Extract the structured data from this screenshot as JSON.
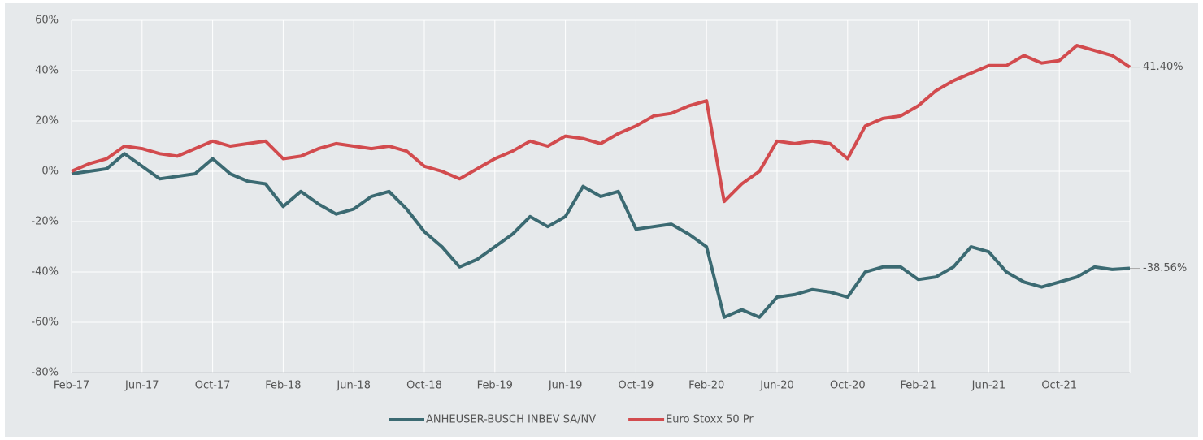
{
  "chart_data": {
    "type": "line",
    "x": [
      "Feb-17",
      "Mar-17",
      "Apr-17",
      "May-17",
      "Jun-17",
      "Jul-17",
      "Aug-17",
      "Sep-17",
      "Oct-17",
      "Nov-17",
      "Dec-17",
      "Jan-18",
      "Feb-18",
      "Mar-18",
      "Apr-18",
      "May-18",
      "Jun-18",
      "Jul-18",
      "Aug-18",
      "Sep-18",
      "Oct-18",
      "Nov-18",
      "Dec-18",
      "Jan-19",
      "Feb-19",
      "Mar-19",
      "Apr-19",
      "May-19",
      "Jun-19",
      "Jul-19",
      "Aug-19",
      "Sep-19",
      "Oct-19",
      "Nov-19",
      "Dec-19",
      "Jan-20",
      "Feb-20",
      "Mar-20",
      "Apr-20",
      "May-20",
      "Jun-20",
      "Jul-20",
      "Aug-20",
      "Sep-20",
      "Oct-20",
      "Nov-20",
      "Dec-20",
      "Jan-21",
      "Feb-21",
      "Mar-21",
      "Apr-21",
      "May-21",
      "Jun-21",
      "Jul-21",
      "Aug-21",
      "Sep-21",
      "Oct-21",
      "Nov-21",
      "Dec-21",
      "Jan-22",
      "Feb-22"
    ],
    "xticks": [
      "Feb-17",
      "Jun-17",
      "Oct-17",
      "Feb-18",
      "Jun-18",
      "Oct-18",
      "Feb-19",
      "Jun-19",
      "Oct-19",
      "Feb-20",
      "Jun-20",
      "Oct-20",
      "Feb-21",
      "Jun-21",
      "Oct-21"
    ],
    "series": [
      {
        "name": "ANHEUSER-BUSCH INBEV SA/NV",
        "color": "#3b6a72",
        "values": [
          -1,
          0,
          1,
          7,
          2,
          -3,
          -2,
          -1,
          5,
          -1,
          -4,
          -5,
          -14,
          -8,
          -13,
          -17,
          -15,
          -10,
          -8,
          -15,
          -24,
          -30,
          -38,
          -35,
          -30,
          -25,
          -18,
          -22,
          -18,
          -6,
          -10,
          -8,
          -23,
          -22,
          -21,
          -25,
          -30,
          -58,
          -55,
          -58,
          -50,
          -49,
          -47,
          -48,
          -50,
          -40,
          -38,
          -38,
          -43,
          -42,
          -38,
          -30,
          -32,
          -40,
          -44,
          -46,
          -44,
          -42,
          -38,
          -39,
          -38.56
        ],
        "value_labels": [
          null,
          null,
          null,
          null,
          null,
          null,
          null,
          null,
          null,
          null,
          null,
          null,
          null,
          null,
          null,
          null,
          null,
          null,
          null,
          null,
          null,
          null,
          null,
          null,
          null,
          null,
          null,
          null,
          null,
          null,
          null,
          null,
          null,
          null,
          null,
          null,
          null,
          null,
          null,
          null,
          null,
          null,
          null,
          null,
          null,
          null,
          null,
          null,
          null,
          null,
          null,
          null,
          null,
          null,
          null,
          null,
          null,
          null,
          null,
          null,
          "-38.56%"
        ]
      },
      {
        "name": "Euro Stoxx 50 Pr",
        "color": "#d24b4e",
        "values": [
          0,
          3,
          5,
          10,
          9,
          7,
          6,
          9,
          12,
          10,
          11,
          12,
          5,
          6,
          9,
          11,
          10,
          9,
          10,
          8,
          2,
          0,
          -3,
          1,
          5,
          8,
          12,
          10,
          14,
          13,
          11,
          15,
          18,
          22,
          23,
          26,
          28,
          -12,
          -5,
          0,
          12,
          11,
          12,
          11,
          5,
          18,
          21,
          22,
          26,
          32,
          36,
          39,
          42,
          42,
          46,
          43,
          44,
          50,
          48,
          46,
          41.4
        ],
        "value_labels": [
          null,
          null,
          null,
          null,
          null,
          null,
          null,
          null,
          null,
          null,
          null,
          null,
          null,
          null,
          null,
          null,
          null,
          null,
          null,
          null,
          null,
          null,
          null,
          null,
          null,
          null,
          null,
          null,
          null,
          null,
          null,
          null,
          null,
          null,
          null,
          null,
          null,
          null,
          null,
          null,
          null,
          null,
          null,
          null,
          null,
          null,
          null,
          null,
          null,
          null,
          null,
          null,
          null,
          null,
          null,
          null,
          null,
          null,
          null,
          null,
          "41.40%"
        ]
      }
    ],
    "ylim": [
      -80,
      60
    ],
    "yticks": [
      {
        "value": -80,
        "label": "-80%"
      },
      {
        "value": -60,
        "label": "-60%"
      },
      {
        "value": -40,
        "label": "-40%"
      },
      {
        "value": -20,
        "label": "-20%"
      },
      {
        "value": 0,
        "label": "0%"
      },
      {
        "value": 20,
        "label": "20%"
      },
      {
        "value": 40,
        "label": "40%"
      },
      {
        "value": 60,
        "label": "60%"
      }
    ],
    "grid": true,
    "legend": "bottom"
  }
}
